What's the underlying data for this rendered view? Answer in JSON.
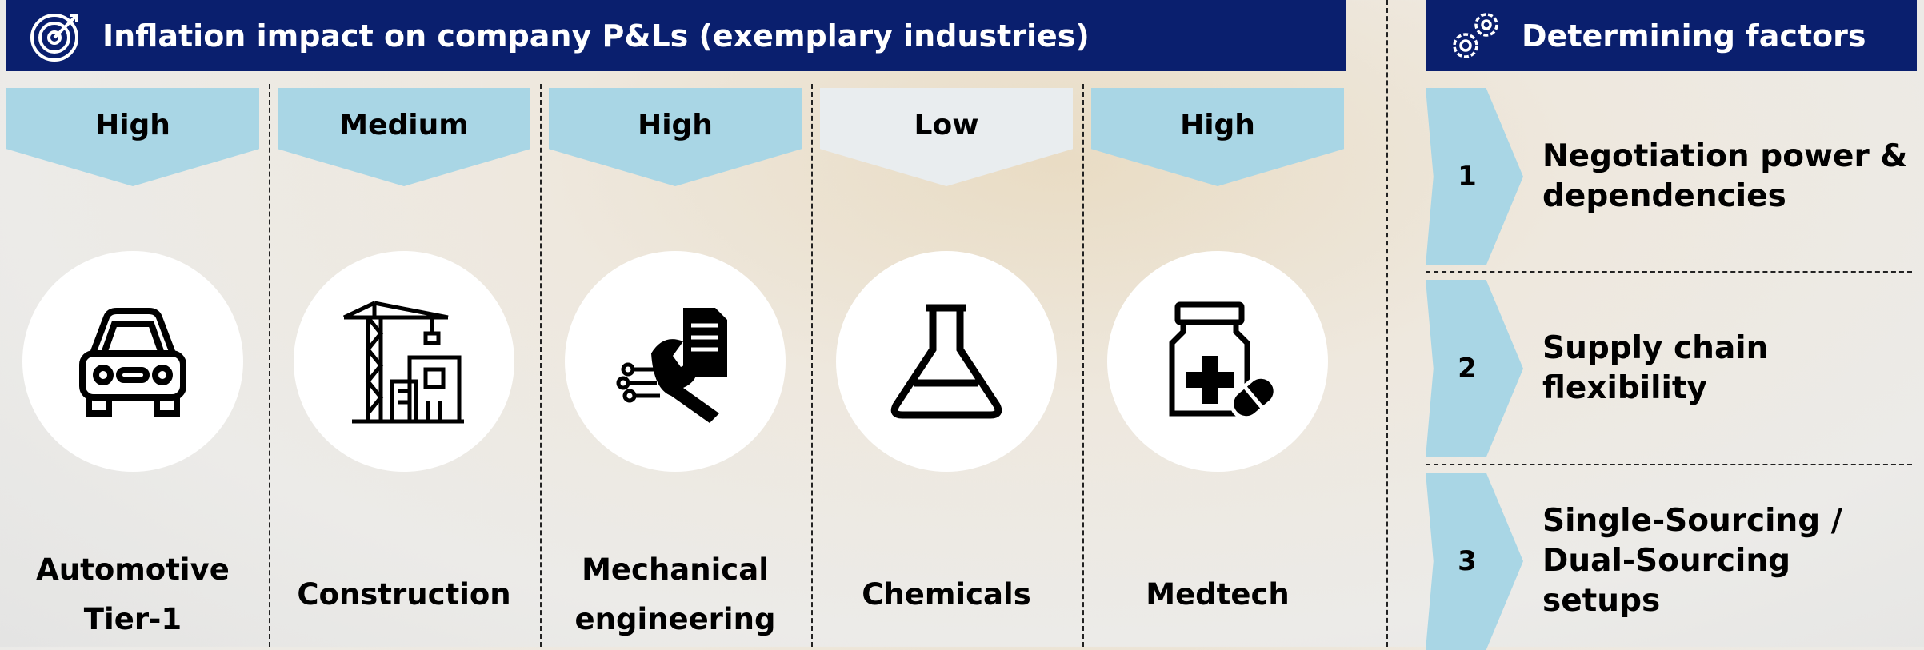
{
  "header": {
    "title": "Inflation impact on company P&Ls (exemplary industries)"
  },
  "columns": [
    {
      "level": "High",
      "label": "Automotive\nTier-1"
    },
    {
      "level": "Medium",
      "label": "Construction"
    },
    {
      "level": "High",
      "label": "Mechanical\nengineering"
    },
    {
      "level": "Low",
      "label": "Chemicals"
    },
    {
      "level": "High",
      "label": "Medtech"
    }
  ],
  "factors": {
    "title": "Determining factors",
    "items": [
      {
        "number": 1,
        "text": "Negotiation power &\ndependencies"
      },
      {
        "number": 2,
        "text": "Supply chain\nflexibility"
      },
      {
        "number": 3,
        "text": "Single-Sourcing /\nDual-Sourcing setups"
      }
    ]
  }
}
